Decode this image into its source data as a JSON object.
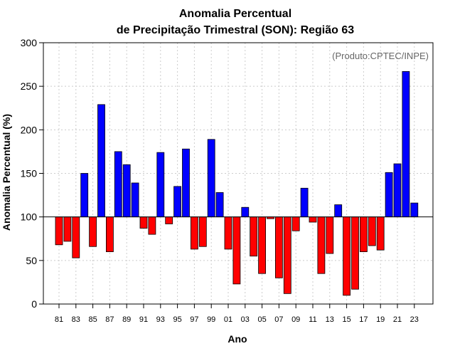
{
  "title_line1": "Anomalia Percentual",
  "title_line2": "de Precipitação Trimestral (SON): Região 63",
  "credit": "(Produto:CPTEC/INPE)",
  "colors": {
    "above": "#0000ff",
    "below": "#ff0000",
    "grid": "#cccccc",
    "axis": "#000000"
  },
  "chart_data": {
    "type": "bar",
    "title": "Anomalia Percentual de Precipitação Trimestral (SON): Região 63",
    "xlabel": "Ano",
    "ylabel": "Anomalia Percentual (%)",
    "ylim": [
      0,
      300
    ],
    "yticks": [
      0,
      50,
      100,
      150,
      200,
      250,
      300
    ],
    "baseline": 100,
    "categories": [
      "81",
      "82",
      "83",
      "84",
      "85",
      "86",
      "87",
      "88",
      "89",
      "90",
      "91",
      "92",
      "93",
      "94",
      "95",
      "96",
      "97",
      "98",
      "99",
      "00",
      "01",
      "02",
      "03",
      "04",
      "05",
      "06",
      "07",
      "08",
      "09",
      "10",
      "11",
      "12",
      "13",
      "14",
      "15",
      "16",
      "17",
      "18",
      "19",
      "20",
      "21",
      "22",
      "23"
    ],
    "xtick_labels": [
      "81",
      "83",
      "85",
      "87",
      "89",
      "91",
      "93",
      "95",
      "97",
      "99",
      "01",
      "03",
      "05",
      "07",
      "09",
      "11",
      "13",
      "15",
      "17",
      "19",
      "21",
      "23"
    ],
    "values": [
      68,
      72,
      53,
      150,
      66,
      229,
      60,
      175,
      160,
      139,
      87,
      80,
      174,
      92,
      135,
      178,
      63,
      66,
      189,
      128,
      63,
      23,
      111,
      55,
      35,
      98,
      30,
      12,
      84,
      133,
      94,
      35,
      58,
      114,
      10,
      17,
      60,
      67,
      62,
      151,
      161,
      267,
      116
    ]
  }
}
